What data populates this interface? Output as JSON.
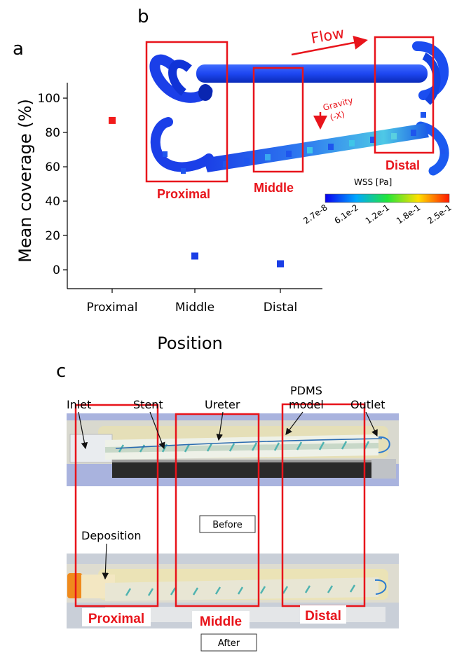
{
  "panels": {
    "a": "a",
    "b": "b",
    "c": "c"
  },
  "chart_data": {
    "type": "scatter",
    "categories": [
      "Proximal",
      "Middle",
      "Distal"
    ],
    "series": [
      {
        "values": [
          87,
          8,
          3.5
        ],
        "colors": [
          "#f21b1b",
          "#1a3ee6",
          "#1a3ee6"
        ]
      }
    ],
    "xlabel": "Position",
    "ylabel": "Mean coverage (%)",
    "yticks": [
      0,
      20,
      40,
      60,
      80,
      100
    ],
    "ylim": [
      -11,
      109
    ]
  },
  "simulation": {
    "flow_label": "Flow",
    "gravity_label": "Gravity",
    "gravity_axis": "(-X)",
    "regions": [
      "Proximal",
      "Middle",
      "Distal"
    ],
    "colorbar_title": "WSS [Pa]",
    "colorbar_ticks": [
      "2.7e-8",
      "6.1e-2",
      "1.2e-1",
      "1.8e-1",
      "2.5e-1"
    ]
  },
  "photo": {
    "callouts": {
      "inlet": "Inlet",
      "stent": "Stent",
      "ureter": "Ureter",
      "pdms_line1": "PDMS",
      "pdms_line2": "model",
      "outlet": "Outlet",
      "deposition": "Deposition"
    },
    "before_label": "Before",
    "after_label": "After",
    "regions": [
      "Proximal",
      "Middle",
      "Distal"
    ]
  }
}
